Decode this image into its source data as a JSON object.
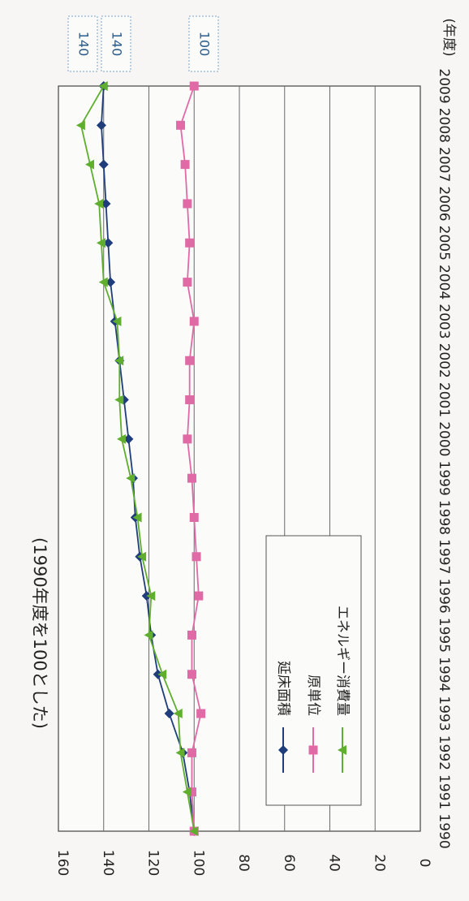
{
  "chart_data": {
    "type": "line",
    "note": "(1990年度を100とした)",
    "unit_label": "(年度)",
    "x": [
      "1990",
      "1991",
      "1992",
      "1993",
      "1994",
      "1995",
      "1996",
      "1997",
      "1998",
      "1999",
      "2000",
      "2001",
      "2002",
      "2003",
      "2004",
      "2005",
      "2006",
      "2007",
      "2008",
      "2009"
    ],
    "ylim": [
      0,
      160
    ],
    "yticks": [
      0,
      20,
      40,
      60,
      80,
      100,
      120,
      140,
      160
    ],
    "series": [
      {
        "name": "延床面積",
        "color": "#1f3d7a",
        "marker": "diamond",
        "values": [
          100,
          102,
          105,
          111,
          116,
          119,
          121,
          124,
          126,
          127,
          129,
          131,
          133,
          135,
          137,
          138,
          139,
          140,
          141,
          140
        ]
      },
      {
        "name": "原単位",
        "color": "#e06aa6",
        "marker": "square",
        "values": [
          100,
          101,
          101,
          97,
          101,
          101,
          98,
          99,
          100,
          101,
          103,
          102,
          102,
          100,
          103,
          102,
          103,
          104,
          106,
          100
        ]
      },
      {
        "name": "エネルギー消費量",
        "color": "#5fae2e",
        "marker": "triangle",
        "values": [
          100,
          103,
          106,
          107,
          114,
          120,
          119,
          123,
          125,
          128,
          132,
          133,
          133,
          134,
          140,
          141,
          142,
          146,
          150,
          140
        ]
      }
    ],
    "end_labels": [
      "140",
      "140",
      "100"
    ],
    "grid": true,
    "legend_position": "inside, lower-left (rotated)"
  }
}
